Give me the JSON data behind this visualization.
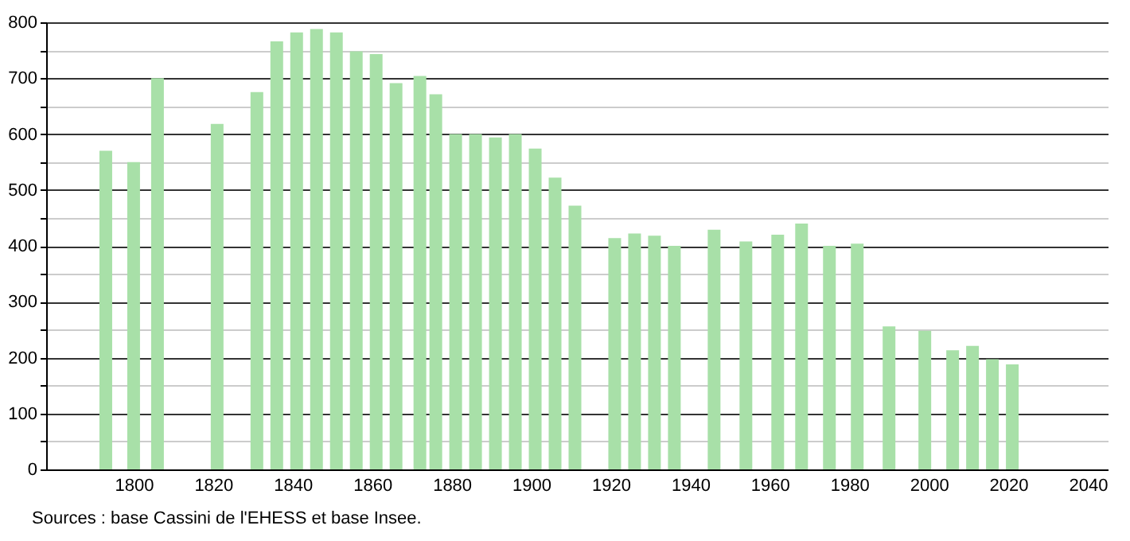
{
  "chart_data": {
    "type": "bar",
    "x": [
      1793,
      1800,
      1806,
      1821,
      1831,
      1836,
      1841,
      1846,
      1851,
      1856,
      1861,
      1866,
      1872,
      1876,
      1881,
      1886,
      1891,
      1896,
      1901,
      1906,
      1911,
      1921,
      1926,
      1931,
      1936,
      1946,
      1954,
      1962,
      1968,
      1975,
      1982,
      1990,
      1999,
      2006,
      2011,
      2016,
      2021
    ],
    "values": [
      570,
      550,
      700,
      618,
      675,
      766,
      782,
      788,
      782,
      748,
      743,
      691,
      704,
      671,
      600,
      600,
      594,
      600,
      574,
      522,
      472,
      414,
      422,
      418,
      400,
      429,
      408,
      420,
      440,
      400,
      404,
      256,
      248,
      213,
      221,
      197,
      188
    ],
    "color": "#a8e0a8",
    "xlim": [
      1780,
      2043
    ],
    "xticks": [
      1800,
      1820,
      1840,
      1860,
      1880,
      1900,
      1920,
      1940,
      1960,
      1980,
      2000,
      2020,
      2040
    ],
    "ylim": [
      0,
      800
    ],
    "yticks": [
      0,
      {
        "value": 50,
        "label": null
      },
      100,
      {
        "value": 150,
        "label": null
      },
      200,
      {
        "value": 250,
        "label": null
      },
      300,
      {
        "value": 350,
        "label": null
      },
      400,
      {
        "value": 450,
        "label": null
      },
      500,
      {
        "value": 550,
        "label": null
      },
      600,
      {
        "value": 650,
        "label": null
      },
      700,
      {
        "value": 750,
        "label": null
      },
      800
    ],
    "grid": "y",
    "annotations": [
      "Sources : base Cassini de l'EHESS et base Insee."
    ]
  }
}
